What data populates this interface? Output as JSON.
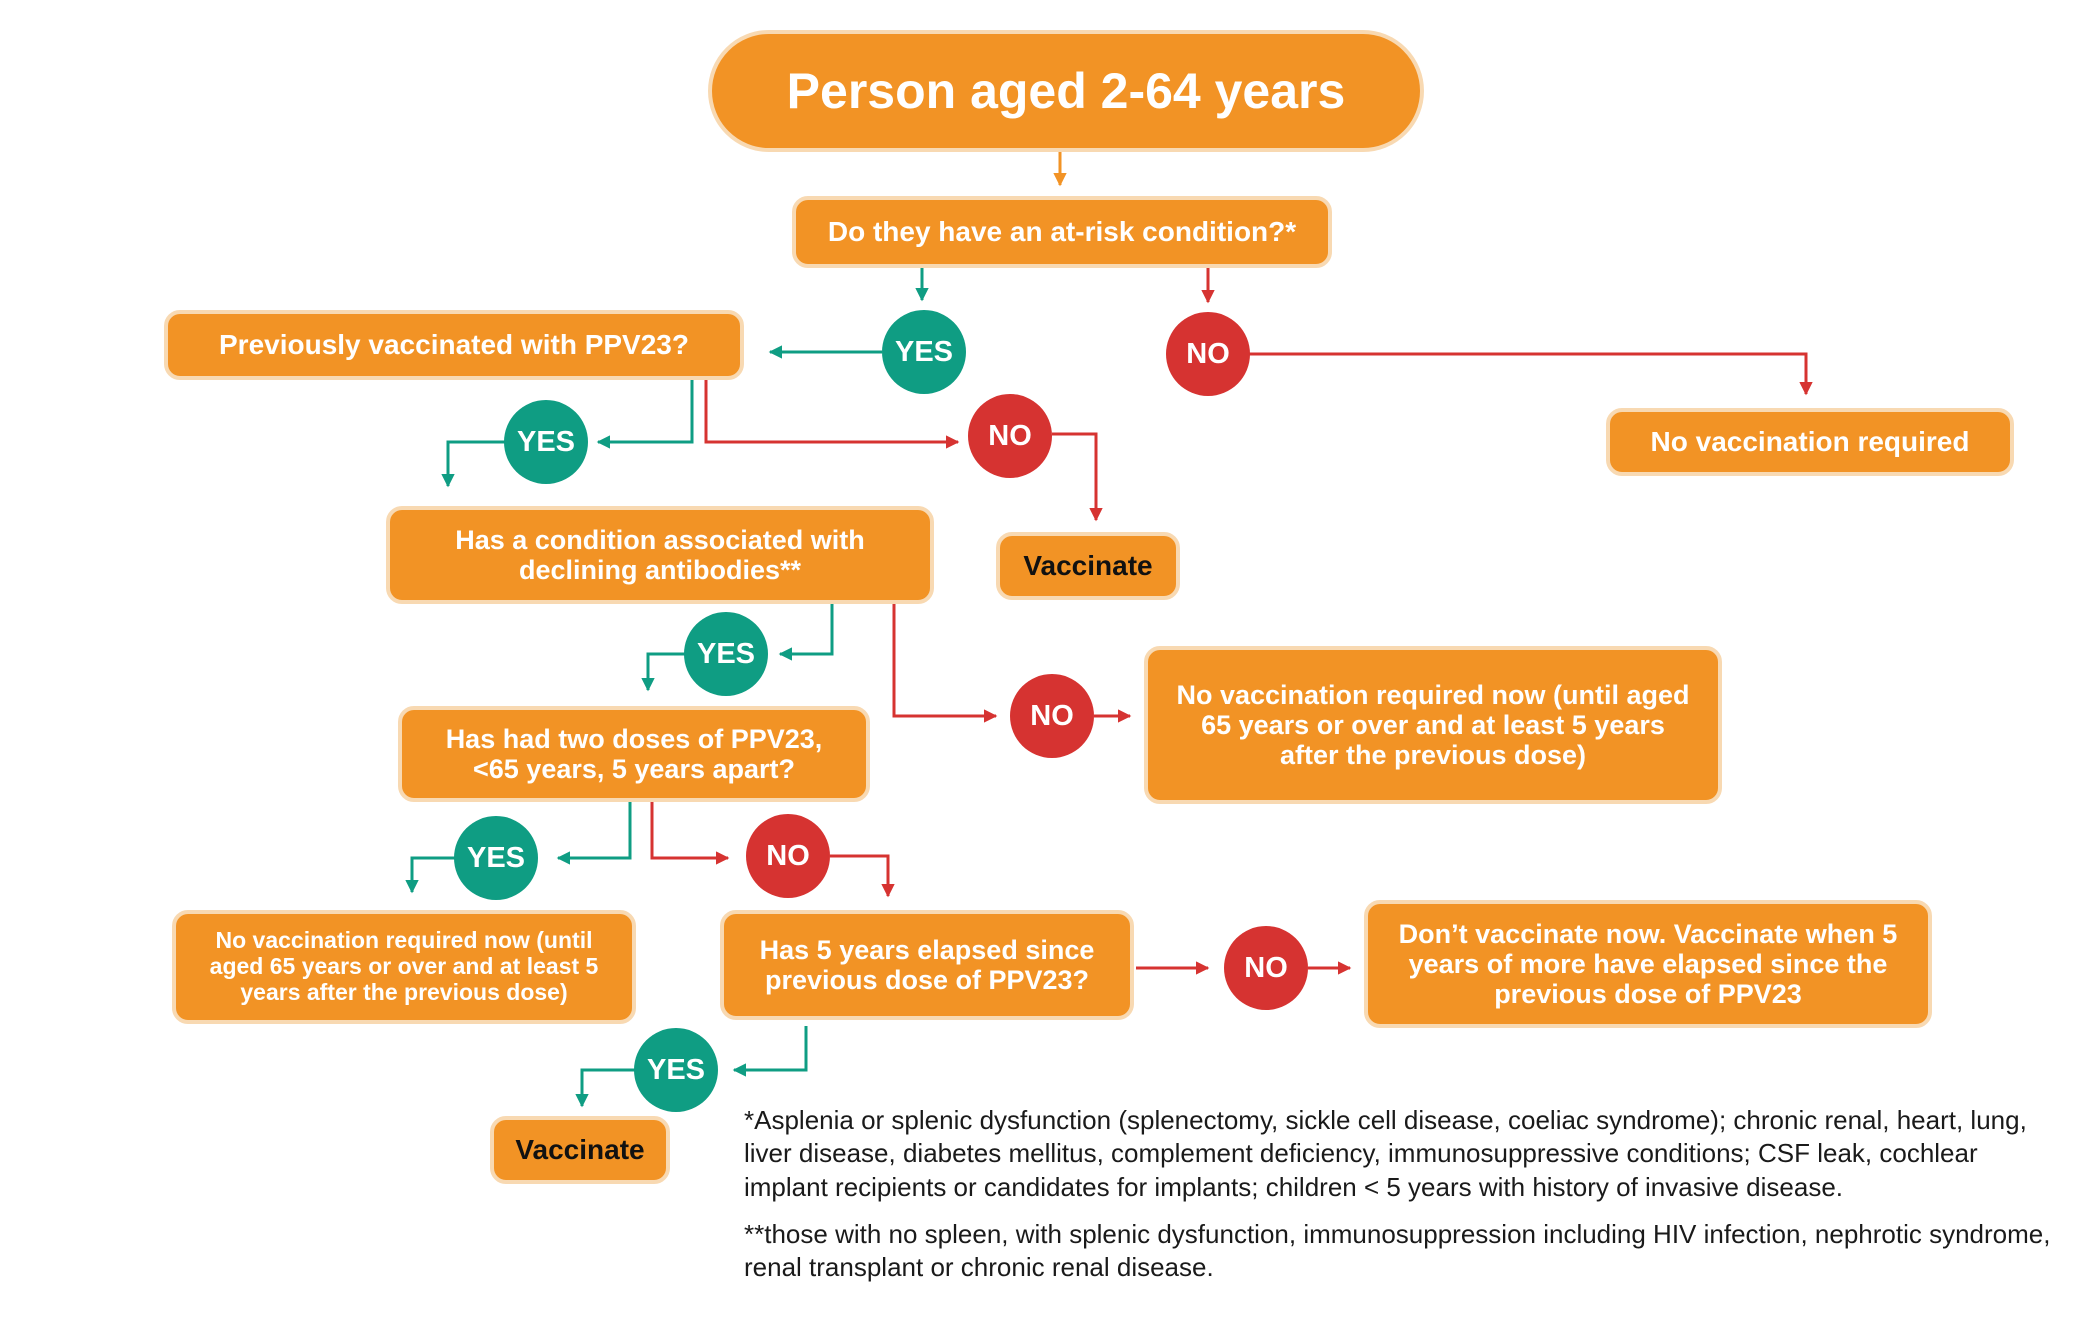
{
  "colors": {
    "box_fill": "#f29325",
    "box_border": "#f8d9b2",
    "yes_green": "#0f9d83",
    "no_red": "#d63331",
    "arrow_orange": "#f29325"
  },
  "title": "Person aged 2-64 years",
  "q_at_risk": "Do they have an at-risk condition?*",
  "q_prev_ppv23": "Previously vaccinated with PPV23?",
  "q_declining": "Has a condition associated with declining antibodies**",
  "q_two_doses": "Has had two doses of PPV23, <65 years, 5 years apart?",
  "q_five_years": "Has 5 years elapsed since previous dose of PPV23?",
  "out_no_vacc": "No vaccination required",
  "out_vaccinate_1": "Vaccinate",
  "out_no_vacc_now_1": "No vaccination required now (until aged 65 years or over and at least 5 years after the previous dose)",
  "out_no_vacc_now_2": "No vaccination required now (until aged 65 years or over and at least 5 years after the previous dose)",
  "out_dont_vacc": "Don’t vaccinate now. Vaccinate when 5 years of more have elapsed since the previous dose of PPV23",
  "out_vaccinate_2": "Vaccinate",
  "labels": {
    "yes": "YES",
    "no": "NO"
  },
  "footnotes": {
    "single_star": "*Asplenia or splenic dysfunction (splenectomy, sickle cell disease, coeliac syndrome); chronic renal, heart, lung, liver disease, diabetes mellitus, complement deficiency, immunosuppressive conditions; CSF leak, cochlear implant recipients or candidates for implants; children < 5 years with history of invasive disease.",
    "double_star": "**those with no spleen, with splenic dysfunction, immunosuppression including HIV infection, nephrotic syndrome, renal transplant or chronic renal disease."
  }
}
